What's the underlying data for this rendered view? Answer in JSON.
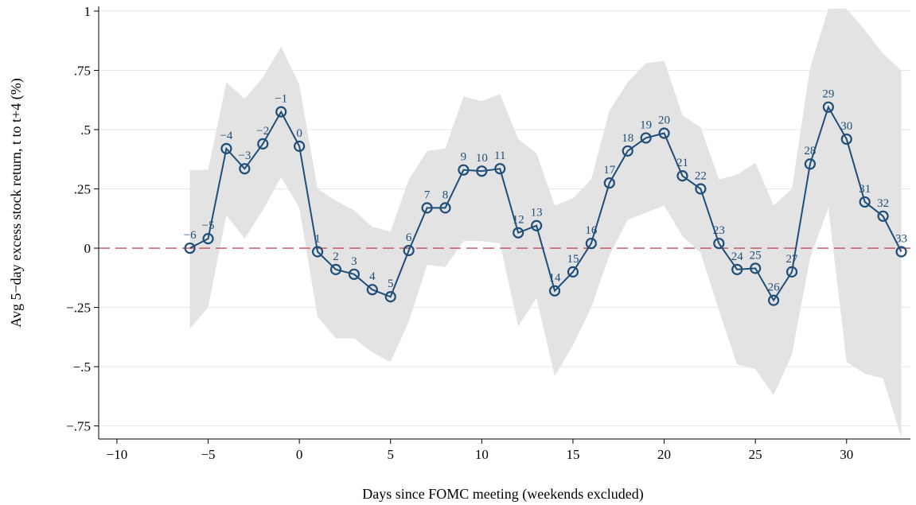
{
  "chart_data": {
    "type": "line",
    "title": "",
    "xlabel": "Days since FOMC meeting (weekends excluded)",
    "ylabel": "Avg 5−day excess stock return, t to t+4 (%)",
    "xlim": [
      -11,
      33.5
    ],
    "ylim": [
      -0.805,
      1.02
    ],
    "x_ticks": [
      -10,
      -5,
      0,
      5,
      10,
      15,
      20,
      25,
      30
    ],
    "x_tick_labels": [
      "−10",
      "−5",
      "0",
      "5",
      "10",
      "15",
      "20",
      "25",
      "30"
    ],
    "y_ticks": [
      1,
      0.75,
      0.5,
      0.25,
      0,
      -0.25,
      -0.5,
      -0.75
    ],
    "y_tick_labels": [
      "1",
      ".75",
      ".5",
      ".25",
      "0",
      "−.25",
      "−.5",
      "−.75"
    ],
    "grid": "horizontal",
    "reference_line": {
      "y": 0,
      "style": "dashed",
      "color": "#c0505a"
    },
    "colors": {
      "series": "#1f4e79",
      "band": "#e3e3e3",
      "grid": "#e6e6e6"
    },
    "x": [
      -6,
      -5,
      -4,
      -3,
      -2,
      -1,
      0,
      1,
      2,
      3,
      4,
      5,
      6,
      7,
      8,
      9,
      10,
      11,
      12,
      13,
      14,
      15,
      16,
      17,
      18,
      19,
      20,
      21,
      22,
      23,
      24,
      25,
      26,
      27,
      28,
      29,
      30,
      31,
      32,
      33
    ],
    "point_labels": [
      "−6",
      "−5",
      "−4",
      "−3",
      "−2",
      "−1",
      "0",
      "1",
      "2",
      "3",
      "4",
      "5",
      "6",
      "7",
      "8",
      "9",
      "10",
      "11",
      "12",
      "13",
      "14",
      "15",
      "16",
      "17",
      "18",
      "19",
      "20",
      "21",
      "22",
      "23",
      "24",
      "25",
      "26",
      "27",
      "28",
      "29",
      "30",
      "31",
      "32",
      "33"
    ],
    "series": [
      {
        "values": [
          0.0,
          0.04,
          0.42,
          0.335,
          0.44,
          0.575,
          0.43,
          -0.015,
          -0.09,
          -0.11,
          -0.175,
          -0.205,
          -0.01,
          0.17,
          0.17,
          0.33,
          0.325,
          0.335,
          0.065,
          0.095,
          -0.18,
          -0.1,
          0.02,
          0.275,
          0.41,
          0.465,
          0.485,
          0.305,
          0.25,
          0.02,
          -0.09,
          -0.085,
          -0.22,
          -0.1,
          0.355,
          0.595,
          0.46,
          0.195,
          0.135,
          -0.015
        ],
        "band_upper": [
          0.33,
          0.33,
          0.7,
          0.63,
          0.72,
          0.85,
          0.69,
          0.25,
          0.2,
          0.16,
          0.09,
          0.07,
          0.29,
          0.41,
          0.42,
          0.64,
          0.62,
          0.65,
          0.46,
          0.4,
          0.18,
          0.21,
          0.29,
          0.58,
          0.7,
          0.78,
          0.79,
          0.56,
          0.51,
          0.29,
          0.31,
          0.36,
          0.18,
          0.25,
          0.76,
          1.01,
          1.01,
          0.92,
          0.82,
          0.75
        ],
        "band_lower": [
          -0.34,
          -0.25,
          0.14,
          0.04,
          0.16,
          0.3,
          0.17,
          -0.29,
          -0.38,
          -0.38,
          -0.44,
          -0.48,
          -0.31,
          -0.07,
          -0.08,
          0.03,
          0.03,
          0.02,
          -0.33,
          -0.21,
          -0.54,
          -0.41,
          -0.25,
          -0.03,
          0.12,
          0.15,
          0.18,
          0.05,
          -0.02,
          -0.26,
          -0.49,
          -0.51,
          -0.62,
          -0.45,
          -0.04,
          0.17,
          -0.48,
          -0.53,
          -0.55,
          -0.8
        ]
      }
    ]
  }
}
